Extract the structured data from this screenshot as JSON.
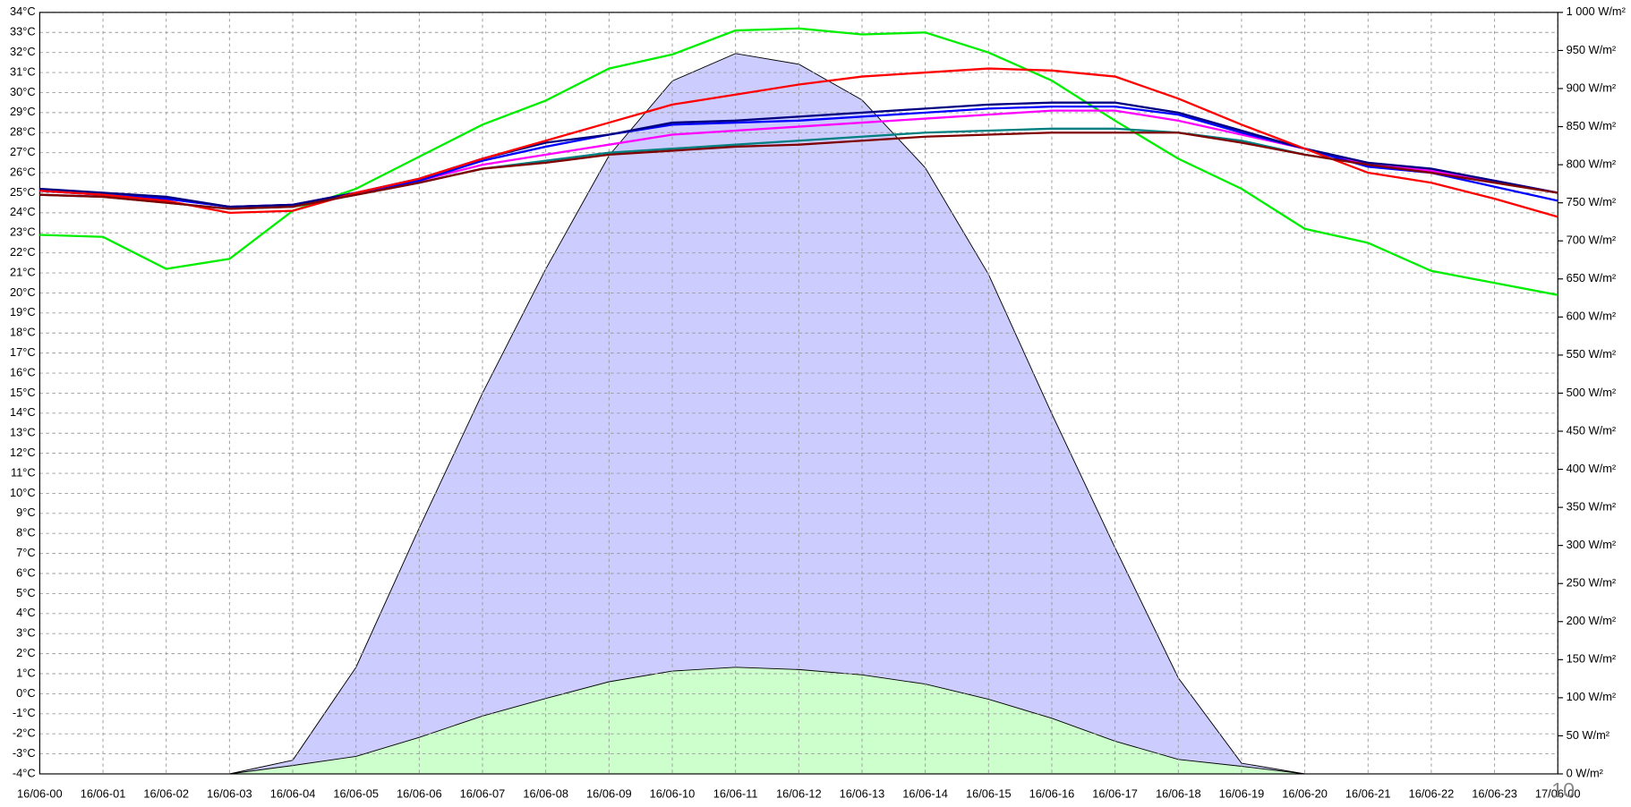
{
  "chart_data": {
    "type": "line",
    "categories": [
      "16/06-00",
      "16/06-01",
      "16/06-02",
      "16/06-03",
      "16/06-04",
      "16/06-05",
      "16/06-06",
      "16/06-07",
      "16/06-08",
      "16/06-09",
      "16/06-10",
      "16/06-11",
      "16/06-12",
      "16/06-13",
      "16/06-14",
      "16/06-15",
      "16/06-16",
      "16/06-17",
      "16/06-18",
      "16/06-19",
      "16/06-20",
      "16/06-21",
      "16/06-22",
      "16/06-23",
      "17/06-00"
    ],
    "ylim": [
      -4,
      34
    ],
    "yticks": [
      {
        "value": -4,
        "label": "-4°C"
      },
      {
        "value": -3,
        "label": "-3°C"
      },
      {
        "value": -2,
        "label": "-2°C"
      },
      {
        "value": -1,
        "label": "-1°C"
      },
      {
        "value": 0,
        "label": "0°C"
      },
      {
        "value": 1,
        "label": "1°C"
      },
      {
        "value": 2,
        "label": "2°C"
      },
      {
        "value": 3,
        "label": "3°C"
      },
      {
        "value": 4,
        "label": "4°C"
      },
      {
        "value": 5,
        "label": "5°C"
      },
      {
        "value": 6,
        "label": "6°C"
      },
      {
        "value": 7,
        "label": "7°C"
      },
      {
        "value": 8,
        "label": "8°C"
      },
      {
        "value": 9,
        "label": "9°C"
      },
      {
        "value": 10,
        "label": "10°C"
      },
      {
        "value": 11,
        "label": "11°C"
      },
      {
        "value": 12,
        "label": "12°C"
      },
      {
        "value": 13,
        "label": "13°C"
      },
      {
        "value": 14,
        "label": "14°C"
      },
      {
        "value": 15,
        "label": "15°C"
      },
      {
        "value": 16,
        "label": "16°C"
      },
      {
        "value": 17,
        "label": "17°C"
      },
      {
        "value": 18,
        "label": "18°C"
      },
      {
        "value": 19,
        "label": "19°C"
      },
      {
        "value": 20,
        "label": "20°C"
      },
      {
        "value": 21,
        "label": "21°C"
      },
      {
        "value": 22,
        "label": "22°C"
      },
      {
        "value": 23,
        "label": "23°C"
      },
      {
        "value": 24,
        "label": "24°C"
      },
      {
        "value": 25,
        "label": "25°C"
      },
      {
        "value": 26,
        "label": "26°C"
      },
      {
        "value": 27,
        "label": "27°C"
      },
      {
        "value": 28,
        "label": "28°C"
      },
      {
        "value": 29,
        "label": "29°C"
      },
      {
        "value": 30,
        "label": "30°C"
      },
      {
        "value": 31,
        "label": "31°C"
      },
      {
        "value": 32,
        "label": "32°C"
      },
      {
        "value": 33,
        "label": "33°C"
      },
      {
        "value": 34,
        "label": "34°C"
      }
    ],
    "y2lim": [
      0,
      1000
    ],
    "y2ticks": [
      {
        "value": 0,
        "label": "0 W/m²"
      },
      {
        "value": 50,
        "label": "50 W/m²"
      },
      {
        "value": 100,
        "label": "100 W/m²"
      },
      {
        "value": 150,
        "label": "150 W/m²"
      },
      {
        "value": 200,
        "label": "200 W/m²"
      },
      {
        "value": 250,
        "label": "250 W/m²"
      },
      {
        "value": 300,
        "label": "300 W/m²"
      },
      {
        "value": 350,
        "label": "350 W/m²"
      },
      {
        "value": 400,
        "label": "400 W/m²"
      },
      {
        "value": 450,
        "label": "450 W/m²"
      },
      {
        "value": 500,
        "label": "500 W/m²"
      },
      {
        "value": 550,
        "label": "550 W/m²"
      },
      {
        "value": 600,
        "label": "600 W/m²"
      },
      {
        "value": 650,
        "label": "650 W/m²"
      },
      {
        "value": 700,
        "label": "700 W/m²"
      },
      {
        "value": 750,
        "label": "750 W/m²"
      },
      {
        "value": 800,
        "label": "800 W/m²"
      },
      {
        "value": 850,
        "label": "850 W/m²"
      },
      {
        "value": 900,
        "label": "900 W/m²"
      },
      {
        "value": 950,
        "label": "950 W/m²"
      },
      {
        "value": 1000,
        "label": "1 000 W/m²"
      }
    ],
    "grid": true,
    "series": [
      {
        "type": "area",
        "axis": "y2",
        "color": "#ccccff",
        "line_color": "#000000",
        "values": [
          0,
          0,
          0,
          0,
          18,
          140,
          323,
          500,
          663,
          812,
          910,
          946,
          932,
          885,
          796,
          656,
          473,
          297,
          126,
          14,
          0,
          0,
          0,
          0,
          0
        ]
      },
      {
        "type": "area",
        "axis": "y2",
        "color": "#ccffcc",
        "line_color": "#000000",
        "values": [
          0,
          0,
          0,
          0,
          11,
          23,
          48,
          76,
          99,
          121,
          135,
          140,
          137,
          130,
          118,
          98,
          73,
          43,
          19,
          10,
          0,
          0,
          0,
          0,
          0
        ]
      },
      {
        "type": "line",
        "color": "#00ee00",
        "values": [
          22.9,
          22.8,
          21.2,
          21.7,
          24.1,
          25.2,
          26.8,
          28.4,
          29.6,
          31.2,
          31.9,
          33.1,
          33.2,
          32.9,
          33.0,
          32.0,
          30.6,
          28.6,
          26.7,
          25.2,
          23.2,
          22.5,
          21.1,
          20.5,
          19.9
        ]
      },
      {
        "type": "line",
        "color": "#008080",
        "values": [
          24.9,
          24.8,
          24.5,
          24.2,
          24.3,
          24.9,
          25.5,
          26.2,
          26.6,
          27.0,
          27.2,
          27.4,
          27.6,
          27.8,
          28.0,
          28.1,
          28.2,
          28.2,
          28.0,
          27.6,
          26.9,
          26.4,
          26.1,
          25.6,
          25.0
        ]
      },
      {
        "type": "line",
        "color": "#ff00ff",
        "values": [
          25.1,
          24.9,
          24.7,
          24.3,
          24.4,
          25.0,
          25.6,
          26.4,
          26.9,
          27.4,
          27.9,
          28.1,
          28.3,
          28.5,
          28.7,
          28.9,
          29.1,
          29.1,
          28.6,
          27.9,
          27.2,
          26.4,
          26.1,
          25.6,
          25.0
        ]
      },
      {
        "type": "line",
        "color": "#0000ff",
        "values": [
          25.1,
          24.9,
          24.7,
          24.3,
          24.4,
          25.0,
          25.6,
          26.6,
          27.3,
          27.9,
          28.4,
          28.5,
          28.6,
          28.8,
          29.0,
          29.2,
          29.3,
          29.3,
          28.9,
          28.0,
          27.2,
          26.3,
          26.0,
          25.3,
          24.6
        ]
      },
      {
        "type": "line",
        "color": "#000080",
        "values": [
          25.2,
          25.0,
          24.8,
          24.3,
          24.4,
          25.0,
          25.7,
          26.7,
          27.5,
          27.9,
          28.5,
          28.6,
          28.8,
          29.0,
          29.2,
          29.4,
          29.5,
          29.5,
          29.0,
          28.1,
          27.2,
          26.5,
          26.2,
          25.6,
          25.0
        ]
      },
      {
        "type": "line",
        "color": "#ff0000",
        "values": [
          25.1,
          24.9,
          24.6,
          24.0,
          24.1,
          25.0,
          25.7,
          26.7,
          27.6,
          28.5,
          29.4,
          29.9,
          30.4,
          30.8,
          31.0,
          31.2,
          31.1,
          30.8,
          29.7,
          28.4,
          27.2,
          26.0,
          25.5,
          24.7,
          23.8
        ]
      },
      {
        "type": "line",
        "color": "#800000",
        "values": [
          24.9,
          24.8,
          24.5,
          24.2,
          24.3,
          24.9,
          25.5,
          26.2,
          26.5,
          26.9,
          27.1,
          27.3,
          27.4,
          27.6,
          27.8,
          27.9,
          28.0,
          28.0,
          28.0,
          27.5,
          26.9,
          26.4,
          26.0,
          25.5,
          25.0
        ]
      }
    ],
    "annotation": "10"
  }
}
